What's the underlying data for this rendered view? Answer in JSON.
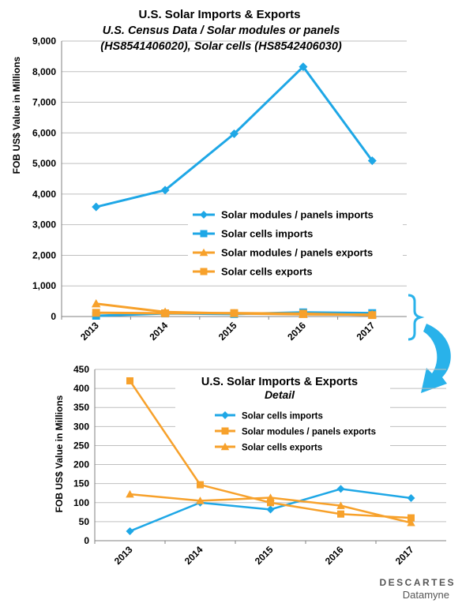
{
  "colors": {
    "blue": "#1ea7e6",
    "orange": "#f7a12b",
    "grid": "#bfbfbf",
    "connector": "#29b2ea"
  },
  "chart_data": [
    {
      "type": "line",
      "title": "U.S. Solar Imports & Exports",
      "subtitle_line1": "U.S. Census Data / Solar modules or panels",
      "subtitle_line2": "(HS8541406020), Solar cells (HS8542406030)",
      "ylabel": "FOB US$ Value in Millions",
      "xlabel": "",
      "ylim": [
        0,
        9000
      ],
      "yticks": [
        0,
        1000,
        2000,
        3000,
        4000,
        5000,
        6000,
        7000,
        8000,
        9000
      ],
      "ytick_labels": [
        "0",
        "1,000",
        "2,000",
        "3,000",
        "4,000",
        "5,000",
        "6,000",
        "7,000",
        "8,000",
        "9,000"
      ],
      "categories": [
        "2013",
        "2014",
        "2015",
        "2016",
        "2017"
      ],
      "grid": true,
      "legend_position": "center-right",
      "series": [
        {
          "name": "Solar modules / panels imports",
          "color": "#1ea7e6",
          "marker": "diamond",
          "values": [
            3580,
            4130,
            5970,
            8160,
            5090
          ]
        },
        {
          "name": "Solar cells imports",
          "color": "#1ea7e6",
          "marker": "square",
          "values": [
            25,
            100,
            82,
            136,
            112
          ]
        },
        {
          "name": "Solar modules / panels exports",
          "color": "#f7a12b",
          "marker": "triangle",
          "values": [
            420,
            147,
            100,
            70,
            60
          ]
        },
        {
          "name": "Solar cells exports",
          "color": "#f7a12b",
          "marker": "square",
          "values": [
            122,
            105,
            113,
            92,
            47
          ]
        }
      ]
    },
    {
      "type": "line",
      "title": "U.S. Solar Imports & Exports",
      "subtitle": "Detail",
      "ylabel": "FOB US$ Value in Millions",
      "xlabel": "",
      "ylim": [
        0,
        450
      ],
      "yticks": [
        0,
        50,
        100,
        150,
        200,
        250,
        300,
        350,
        400,
        450
      ],
      "ytick_labels": [
        "0",
        "50",
        "100",
        "150",
        "200",
        "250",
        "300",
        "350",
        "400",
        "450"
      ],
      "categories": [
        "2013",
        "2014",
        "2015",
        "2016",
        "2017"
      ],
      "grid": true,
      "legend_position": "top-right",
      "series": [
        {
          "name": "Solar cells imports",
          "color": "#1ea7e6",
          "marker": "diamond",
          "values": [
            25,
            100,
            82,
            136,
            112
          ]
        },
        {
          "name": "Solar modules / panels exports",
          "color": "#f7a12b",
          "marker": "square",
          "values": [
            420,
            147,
            100,
            70,
            60
          ]
        },
        {
          "name": "Solar cells exports",
          "color": "#f7a12b",
          "marker": "triangle",
          "values": [
            122,
            105,
            113,
            92,
            47
          ]
        }
      ]
    }
  ],
  "logo": {
    "brand": "DESCARTES",
    "sub": "Datamyne"
  }
}
